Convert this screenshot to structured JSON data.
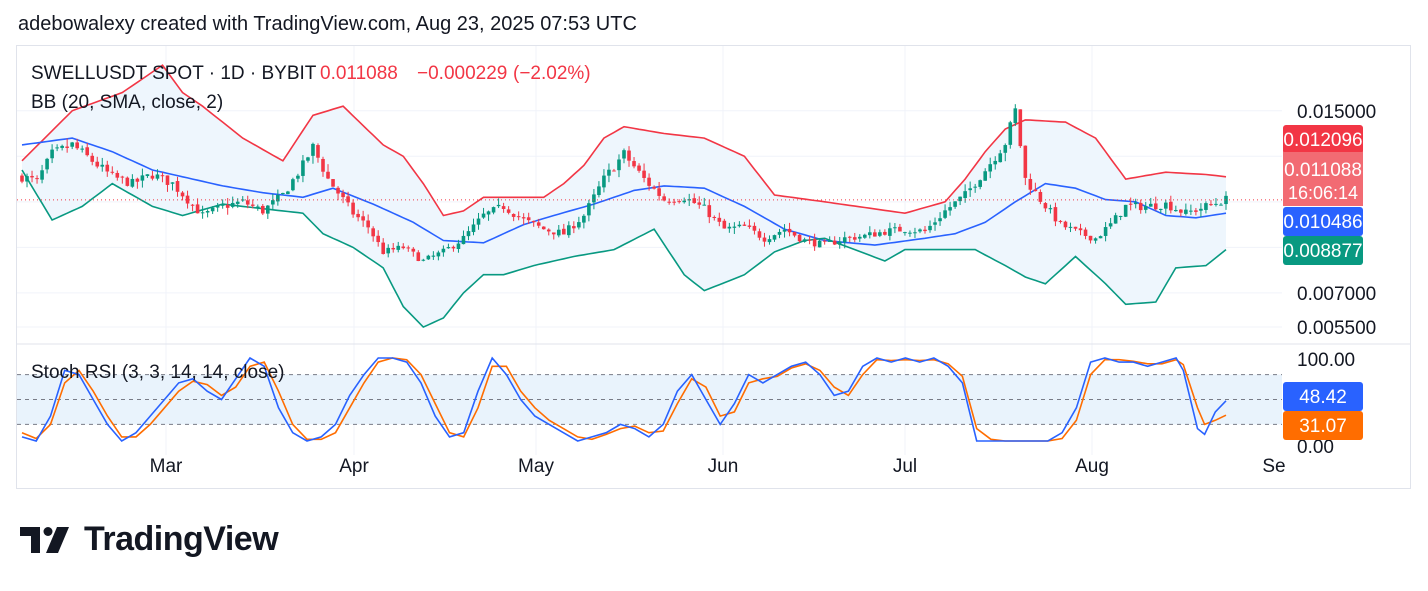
{
  "header": {
    "attribution": "adebowalexy created with TradingView.com, Aug 23, 2025 07:53 UTC"
  },
  "legend": {
    "symbol": "SWELLUSDT SPOT · 1D · BYBIT",
    "last": "0.011088",
    "change": "−0.000229",
    "change_pct": "(−2.02%)",
    "bb": "BB (20, SMA, close, 2)",
    "stoch": "Stoch RSI (3, 3, 14, 14, close)"
  },
  "price_axis": {
    "ticks": [
      "0.015000",
      "0.007000",
      "0.005500"
    ]
  },
  "stoch_axis": {
    "ticks": [
      "100.00"
    ],
    "partial": "0.00"
  },
  "price_badges": {
    "upper": "0.012096",
    "last": "0.011088",
    "countdown": "16:06:14",
    "basis": "0.010486",
    "lower": "0.008877"
  },
  "stoch_badges": {
    "k": "48.42",
    "d": "31.07"
  },
  "time_axis": [
    "Mar",
    "Apr",
    "May",
    "Jun",
    "Jul",
    "Aug",
    "Se"
  ],
  "colors": {
    "up": "#089981",
    "down": "#f23645",
    "upper_band": "#f23645",
    "basis": "#2962ff",
    "lower_band": "#089981",
    "band_fill": "#eef6fd",
    "stoch_k": "#2962ff",
    "stoch_d": "#ff6d00"
  },
  "logo": {
    "text": "TradingView"
  },
  "chart_data": {
    "type": "candlestick",
    "title": "SWELLUSDT SPOT · 1D · BYBIT",
    "indicators": [
      "BB (20, SMA, close, 2)",
      "Stoch RSI (3, 3, 14, 14, close)"
    ],
    "period": "2025-02-11 to 2025-08-23",
    "last_close": 0.011088,
    "change": -0.000229,
    "change_pct": -2.02,
    "bb_current": {
      "upper": 0.012096,
      "basis": 0.010486,
      "lower": 0.008877
    },
    "stoch_current": {
      "k": 48.42,
      "d": 31.07
    },
    "ylim": [
      0.0048,
      0.0178
    ],
    "stoch_ylim": [
      0,
      100
    ],
    "x_labels": [
      "Mar",
      "Apr",
      "May",
      "Jun",
      "Jul",
      "Aug",
      "Se"
    ],
    "anchors": {
      "close": [
        [
          0,
          0.0121
        ],
        [
          3,
          0.0119
        ],
        [
          6,
          0.0131
        ],
        [
          10,
          0.0135
        ],
        [
          14,
          0.0128
        ],
        [
          18,
          0.0121
        ],
        [
          22,
          0.0118
        ],
        [
          26,
          0.0122
        ],
        [
          30,
          0.0118
        ],
        [
          33,
          0.0111
        ],
        [
          36,
          0.0104
        ],
        [
          40,
          0.0108
        ],
        [
          44,
          0.011
        ],
        [
          48,
          0.0106
        ],
        [
          52,
          0.0113
        ],
        [
          56,
          0.0126
        ],
        [
          58,
          0.0134
        ],
        [
          61,
          0.012
        ],
        [
          63,
          0.0114
        ],
        [
          66,
          0.0105
        ],
        [
          69,
          0.0099
        ],
        [
          72,
          0.0088
        ],
        [
          76,
          0.009
        ],
        [
          80,
          0.0084
        ],
        [
          84,
          0.0088
        ],
        [
          88,
          0.0094
        ],
        [
          92,
          0.0104
        ],
        [
          96,
          0.0108
        ],
        [
          100,
          0.0102
        ],
        [
          104,
          0.0098
        ],
        [
          108,
          0.0096
        ],
        [
          112,
          0.0104
        ],
        [
          116,
          0.012
        ],
        [
          120,
          0.0131
        ],
        [
          124,
          0.012
        ],
        [
          128,
          0.0111
        ],
        [
          132,
          0.0112
        ],
        [
          136,
          0.0107
        ],
        [
          140,
          0.0098
        ],
        [
          144,
          0.0099
        ],
        [
          148,
          0.0094
        ],
        [
          152,
          0.0098
        ],
        [
          156,
          0.0093
        ],
        [
          160,
          0.0091
        ],
        [
          164,
          0.0094
        ],
        [
          168,
          0.0095
        ],
        [
          172,
          0.0097
        ],
        [
          176,
          0.0098
        ],
        [
          180,
          0.0097
        ],
        [
          184,
          0.0106
        ],
        [
          188,
          0.0113
        ],
        [
          192,
          0.0124
        ],
        [
          196,
          0.0136
        ],
        [
          198,
          0.015
        ],
        [
          200,
          0.012
        ],
        [
          203,
          0.0111
        ],
        [
          207,
          0.01
        ],
        [
          211,
          0.0096
        ],
        [
          214,
          0.0094
        ],
        [
          217,
          0.01
        ],
        [
          220,
          0.0108
        ],
        [
          224,
          0.0108
        ],
        [
          228,
          0.0109
        ],
        [
          232,
          0.0105
        ],
        [
          236,
          0.0108
        ],
        [
          240,
          0.0111
        ]
      ],
      "upper": [
        [
          0,
          0.0128
        ],
        [
          10,
          0.015
        ],
        [
          20,
          0.0158
        ],
        [
          28,
          0.017
        ],
        [
          32,
          0.0158
        ],
        [
          36,
          0.0152
        ],
        [
          44,
          0.0138
        ],
        [
          52,
          0.0128
        ],
        [
          58,
          0.0148
        ],
        [
          64,
          0.0152
        ],
        [
          72,
          0.0135
        ],
        [
          76,
          0.013
        ],
        [
          80,
          0.0118
        ],
        [
          84,
          0.0104
        ],
        [
          88,
          0.0106
        ],
        [
          92,
          0.0112
        ],
        [
          100,
          0.0112
        ],
        [
          104,
          0.0112
        ],
        [
          108,
          0.0118
        ],
        [
          112,
          0.0126
        ],
        [
          116,
          0.0138
        ],
        [
          120,
          0.0143
        ],
        [
          128,
          0.014
        ],
        [
          136,
          0.0138
        ],
        [
          144,
          0.013
        ],
        [
          150,
          0.0113
        ],
        [
          160,
          0.011
        ],
        [
          176,
          0.0105
        ],
        [
          184,
          0.011
        ],
        [
          188,
          0.012
        ],
        [
          192,
          0.0132
        ],
        [
          196,
          0.0142
        ],
        [
          200,
          0.0146
        ],
        [
          208,
          0.0145
        ],
        [
          214,
          0.0138
        ],
        [
          220,
          0.012
        ],
        [
          228,
          0.0123
        ],
        [
          236,
          0.0122
        ],
        [
          240,
          0.0121
        ]
      ],
      "basis": [
        [
          0,
          0.0135
        ],
        [
          10,
          0.0138
        ],
        [
          18,
          0.0132
        ],
        [
          26,
          0.0124
        ],
        [
          32,
          0.0121
        ],
        [
          40,
          0.0117
        ],
        [
          48,
          0.0114
        ],
        [
          56,
          0.0112
        ],
        [
          62,
          0.0116
        ],
        [
          70,
          0.0109
        ],
        [
          78,
          0.0101
        ],
        [
          84,
          0.0093
        ],
        [
          92,
          0.0092
        ],
        [
          100,
          0.01
        ],
        [
          106,
          0.0104
        ],
        [
          114,
          0.0109
        ],
        [
          122,
          0.0115
        ],
        [
          128,
          0.0117
        ],
        [
          136,
          0.0116
        ],
        [
          144,
          0.0108
        ],
        [
          152,
          0.0098
        ],
        [
          160,
          0.0093
        ],
        [
          170,
          0.0091
        ],
        [
          180,
          0.0094
        ],
        [
          186,
          0.0096
        ],
        [
          192,
          0.0101
        ],
        [
          198,
          0.011
        ],
        [
          204,
          0.0118
        ],
        [
          210,
          0.0116
        ],
        [
          216,
          0.0111
        ],
        [
          222,
          0.011
        ],
        [
          228,
          0.0104
        ],
        [
          234,
          0.0103
        ],
        [
          240,
          0.0105
        ]
      ],
      "lower": [
        [
          0,
          0.0124
        ],
        [
          6,
          0.0102
        ],
        [
          12,
          0.0108
        ],
        [
          18,
          0.0118
        ],
        [
          26,
          0.0108
        ],
        [
          32,
          0.0104
        ],
        [
          40,
          0.0109
        ],
        [
          48,
          0.0107
        ],
        [
          56,
          0.0105
        ],
        [
          60,
          0.0096
        ],
        [
          66,
          0.009
        ],
        [
          72,
          0.0081
        ],
        [
          76,
          0.0064
        ],
        [
          80,
          0.0055
        ],
        [
          84,
          0.0059
        ],
        [
          88,
          0.007
        ],
        [
          92,
          0.0078
        ],
        [
          96,
          0.0078
        ],
        [
          102,
          0.0082
        ],
        [
          110,
          0.0086
        ],
        [
          118,
          0.0089
        ],
        [
          126,
          0.0098
        ],
        [
          132,
          0.0078
        ],
        [
          136,
          0.0071
        ],
        [
          144,
          0.0078
        ],
        [
          150,
          0.0088
        ],
        [
          156,
          0.0093
        ],
        [
          160,
          0.0094
        ],
        [
          166,
          0.0089
        ],
        [
          172,
          0.0084
        ],
        [
          176,
          0.0089
        ],
        [
          182,
          0.0089
        ],
        [
          190,
          0.0089
        ],
        [
          196,
          0.0082
        ],
        [
          200,
          0.0077
        ],
        [
          204,
          0.0074
        ],
        [
          210,
          0.0086
        ],
        [
          216,
          0.0074
        ],
        [
          220,
          0.0065
        ],
        [
          226,
          0.0066
        ],
        [
          230,
          0.0081
        ],
        [
          236,
          0.0082
        ],
        [
          240,
          0.0089
        ]
      ],
      "stoch_k": [
        [
          0,
          5
        ],
        [
          4,
          0
        ],
        [
          8,
          30
        ],
        [
          12,
          85
        ],
        [
          16,
          80
        ],
        [
          20,
          50
        ],
        [
          24,
          20
        ],
        [
          28,
          0
        ],
        [
          32,
          10
        ],
        [
          36,
          30
        ],
        [
          40,
          50
        ],
        [
          44,
          70
        ],
        [
          48,
          75
        ],
        [
          52,
          60
        ],
        [
          56,
          50
        ],
        [
          60,
          75
        ],
        [
          64,
          100
        ],
        [
          68,
          90
        ],
        [
          72,
          40
        ],
        [
          76,
          10
        ],
        [
          80,
          0
        ],
        [
          84,
          5
        ],
        [
          88,
          20
        ],
        [
          92,
          55
        ],
        [
          96,
          80
        ],
        [
          100,
          100
        ],
        [
          104,
          100
        ],
        [
          108,
          95
        ],
        [
          112,
          70
        ],
        [
          116,
          30
        ],
        [
          120,
          5
        ],
        [
          124,
          10
        ],
        [
          128,
          60
        ],
        [
          132,
          100
        ],
        [
          136,
          80
        ],
        [
          140,
          50
        ],
        [
          144,
          30
        ],
        [
          148,
          20
        ],
        [
          152,
          10
        ],
        [
          156,
          0
        ],
        [
          160,
          5
        ],
        [
          164,
          10
        ],
        [
          168,
          20
        ],
        [
          172,
          15
        ],
        [
          176,
          5
        ],
        [
          180,
          20
        ],
        [
          184,
          60
        ],
        [
          188,
          80
        ],
        [
          192,
          50
        ],
        [
          196,
          20
        ],
        [
          200,
          45
        ],
        [
          204,
          80
        ],
        [
          208,
          70
        ],
        [
          212,
          80
        ],
        [
          216,
          90
        ],
        [
          220,
          95
        ],
        [
          224,
          80
        ],
        [
          228,
          55
        ],
        [
          232,
          60
        ],
        [
          236,
          90
        ],
        [
          240,
          100
        ],
        [
          244,
          95
        ],
        [
          248,
          100
        ],
        [
          252,
          95
        ],
        [
          256,
          100
        ],
        [
          260,
          90
        ],
        [
          264,
          70
        ],
        [
          268,
          0
        ],
        [
          272,
          0
        ],
        [
          276,
          0
        ],
        [
          280,
          0
        ],
        [
          284,
          0
        ],
        [
          288,
          0
        ],
        [
          292,
          10
        ],
        [
          296,
          40
        ],
        [
          300,
          95
        ],
        [
          304,
          100
        ],
        [
          308,
          95
        ],
        [
          312,
          95
        ],
        [
          316,
          90
        ],
        [
          320,
          95
        ],
        [
          324,
          100
        ],
        [
          326,
          85
        ],
        [
          330,
          15
        ],
        [
          332,
          8
        ],
        [
          335,
          35
        ],
        [
          338,
          48.42
        ]
      ],
      "stoch_d": [
        [
          0,
          10
        ],
        [
          4,
          3
        ],
        [
          8,
          20
        ],
        [
          12,
          70
        ],
        [
          16,
          85
        ],
        [
          20,
          60
        ],
        [
          24,
          30
        ],
        [
          28,
          5
        ],
        [
          32,
          5
        ],
        [
          36,
          20
        ],
        [
          40,
          40
        ],
        [
          44,
          60
        ],
        [
          48,
          72
        ],
        [
          52,
          68
        ],
        [
          56,
          55
        ],
        [
          60,
          65
        ],
        [
          64,
          90
        ],
        [
          68,
          95
        ],
        [
          72,
          60
        ],
        [
          76,
          20
        ],
        [
          80,
          2
        ],
        [
          84,
          2
        ],
        [
          88,
          10
        ],
        [
          92,
          40
        ],
        [
          96,
          70
        ],
        [
          100,
          95
        ],
        [
          104,
          100
        ],
        [
          108,
          98
        ],
        [
          112,
          80
        ],
        [
          116,
          45
        ],
        [
          120,
          10
        ],
        [
          124,
          5
        ],
        [
          128,
          40
        ],
        [
          132,
          90
        ],
        [
          136,
          90
        ],
        [
          140,
          60
        ],
        [
          144,
          40
        ],
        [
          148,
          25
        ],
        [
          152,
          15
        ],
        [
          156,
          5
        ],
        [
          160,
          2
        ],
        [
          164,
          8
        ],
        [
          168,
          15
        ],
        [
          172,
          18
        ],
        [
          176,
          10
        ],
        [
          180,
          12
        ],
        [
          184,
          45
        ],
        [
          188,
          75
        ],
        [
          192,
          65
        ],
        [
          196,
          30
        ],
        [
          200,
          35
        ],
        [
          204,
          70
        ],
        [
          208,
          75
        ],
        [
          212,
          78
        ],
        [
          216,
          88
        ],
        [
          220,
          93
        ],
        [
          224,
          85
        ],
        [
          228,
          65
        ],
        [
          232,
          55
        ],
        [
          236,
          80
        ],
        [
          240,
          98
        ],
        [
          244,
          97
        ],
        [
          248,
          98
        ],
        [
          252,
          97
        ],
        [
          256,
          98
        ],
        [
          260,
          93
        ],
        [
          264,
          78
        ],
        [
          268,
          15
        ],
        [
          272,
          2
        ],
        [
          276,
          0
        ],
        [
          280,
          0
        ],
        [
          284,
          0
        ],
        [
          288,
          0
        ],
        [
          292,
          3
        ],
        [
          296,
          25
        ],
        [
          300,
          80
        ],
        [
          304,
          98
        ],
        [
          308,
          98
        ],
        [
          312,
          96
        ],
        [
          316,
          93
        ],
        [
          320,
          93
        ],
        [
          324,
          98
        ],
        [
          326,
          92
        ],
        [
          330,
          40
        ],
        [
          332,
          20
        ],
        [
          335,
          25
        ],
        [
          338,
          31.07
        ]
      ]
    }
  }
}
